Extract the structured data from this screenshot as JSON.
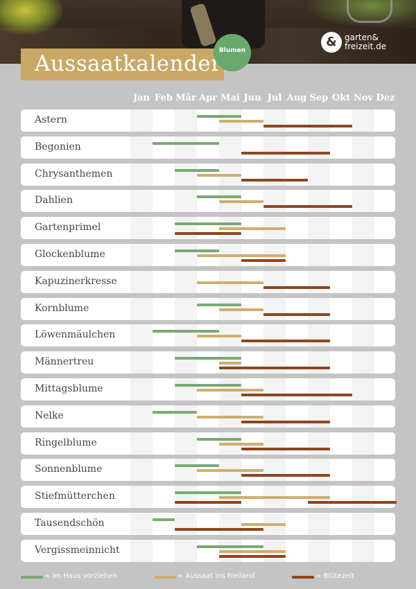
{
  "header": {
    "title": "Aussaatkalender",
    "badge": "Blumen",
    "logo_icon": "&",
    "logo_line1": "garten&",
    "logo_line2": "freizeit.de"
  },
  "colors": {
    "indoor": "#79aa72",
    "outdoor": "#cfad6e",
    "bloom": "#8e4520"
  },
  "chart_data": {
    "type": "table",
    "title": "Aussaatkalender",
    "subtitle": "Blumen",
    "months": [
      "Jan",
      "Feb",
      "Mär",
      "Apr",
      "Mai",
      "Jun",
      "Jul",
      "Aug",
      "Sep",
      "Okt",
      "Nov",
      "Dez"
    ],
    "legend": [
      {
        "key": "indoor",
        "label": "= im Haus vorziehen"
      },
      {
        "key": "outdoor",
        "label": "= Aussaat ins Freiland"
      },
      {
        "key": "bloom",
        "label": "= Blütezeit"
      }
    ],
    "plants": [
      {
        "name": "Astern",
        "indoor": [
          4,
          5
        ],
        "outdoor": [
          5,
          6
        ],
        "bloom": [
          7,
          10
        ]
      },
      {
        "name": "Begonien",
        "indoor": [
          2,
          4
        ],
        "outdoor": null,
        "bloom": [
          6,
          9
        ]
      },
      {
        "name": "Chrysanthemen",
        "indoor": [
          3,
          4
        ],
        "outdoor": [
          4,
          5
        ],
        "bloom": [
          6,
          8
        ]
      },
      {
        "name": "Dahlien",
        "indoor": [
          4,
          5
        ],
        "outdoor": [
          5,
          6
        ],
        "bloom": [
          7,
          10
        ]
      },
      {
        "name": "Gartenprimel",
        "indoor": [
          3,
          5
        ],
        "outdoor": [
          5,
          7
        ],
        "bloom": [
          3,
          5
        ]
      },
      {
        "name": "Glockenblume",
        "indoor": [
          3,
          4
        ],
        "outdoor": [
          4,
          7
        ],
        "bloom": [
          6,
          7
        ]
      },
      {
        "name": "Kapuzinerkresse",
        "indoor": null,
        "outdoor": [
          4,
          6
        ],
        "bloom": [
          7,
          9
        ]
      },
      {
        "name": "Kornblume",
        "indoor": [
          4,
          5
        ],
        "outdoor": [
          5,
          6
        ],
        "bloom": [
          7,
          9
        ]
      },
      {
        "name": "Löwenmäulchen",
        "indoor": [
          2,
          4
        ],
        "outdoor": [
          4,
          5
        ],
        "bloom": [
          6,
          9
        ]
      },
      {
        "name": "Männertreu",
        "indoor": [
          3,
          5
        ],
        "outdoor": [
          5,
          5
        ],
        "bloom": [
          5,
          9
        ]
      },
      {
        "name": "Mittagsblume",
        "indoor": [
          3,
          5
        ],
        "outdoor": [
          4,
          6
        ],
        "bloom": [
          6,
          10
        ]
      },
      {
        "name": "Nelke",
        "indoor": [
          2,
          3
        ],
        "outdoor": [
          4,
          6
        ],
        "bloom": [
          6,
          9
        ]
      },
      {
        "name": "Ringelblume",
        "indoor": [
          4,
          5
        ],
        "outdoor": [
          5,
          6
        ],
        "bloom": [
          6,
          9
        ]
      },
      {
        "name": "Sonnenblume",
        "indoor": [
          3,
          4
        ],
        "outdoor": [
          4,
          6
        ],
        "bloom": [
          6,
          9
        ]
      },
      {
        "name": "Stiefmütterchen",
        "indoor": [
          3,
          5
        ],
        "outdoor": [
          5,
          9
        ],
        "bloom": [
          3,
          5
        ],
        "bloom2": [
          9,
          12
        ]
      },
      {
        "name": "Tausendschön",
        "indoor": [
          2,
          2
        ],
        "outdoor": [
          6,
          7
        ],
        "bloom": [
          3,
          6
        ]
      },
      {
        "name": "Vergissmeinnicht",
        "indoor": [
          4,
          6
        ],
        "outdoor": [
          5,
          7
        ],
        "bloom": [
          5,
          7
        ]
      }
    ]
  }
}
